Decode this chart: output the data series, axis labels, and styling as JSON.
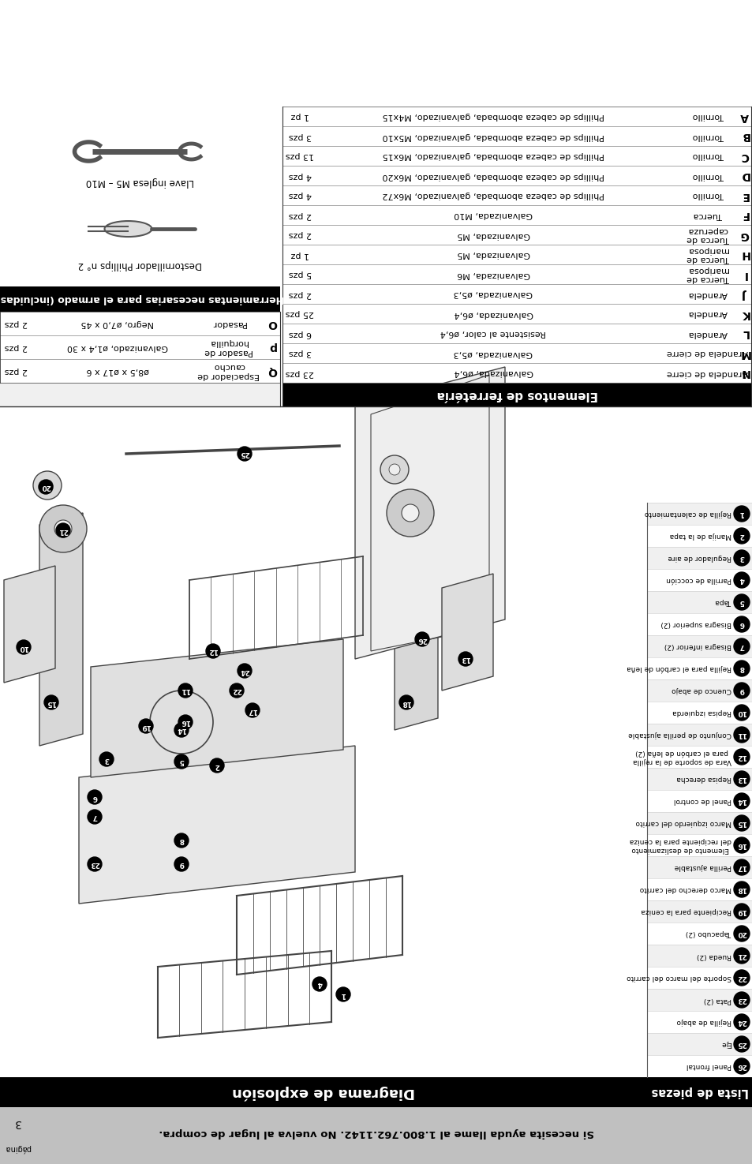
{
  "page_bg": "#ffffff",
  "footer_bg": "#c0c0c0",
  "black": "#000000",
  "white": "#ffffff",
  "light_gray": "#f5f5f5",
  "title_tools": "Herramientas necesarias para el armado (incluidas)",
  "tool1_label": "Llave inglesa M5 – M10",
  "tool2_label": "Destornillador Phillips n° 2",
  "hardware_title": "Elementos de ferretéría",
  "parts_title": "Lista de piezas",
  "diagram_title": "Diagrama de explosión",
  "footer_text": "Si necesita ayuda llame al 1.800.762.1142. No vuelva al lugar de compra.",
  "page_label": "página",
  "page_number": "3",
  "hw_rows_right": [
    [
      "N",
      "Arandela de cierre",
      "Galvanizada, ø6,4",
      "23 pzs"
    ],
    [
      "M",
      "Arandela de cierre",
      "Galvanizada, ø5,3",
      "3 pzs"
    ],
    [
      "L",
      "Arandela",
      "Resistente al calor, ø6,4",
      "6 pzs"
    ],
    [
      "K",
      "Arandela",
      "Galvanizada, ø6,4",
      "25 pzs"
    ],
    [
      "J",
      "Arandela",
      "Galvanizada, ø5,3",
      "2 pzs"
    ],
    [
      "I",
      "Tuerca de\nmariposa",
      "Galvanizada, M6",
      "5 pzs"
    ],
    [
      "H",
      "Tuerca de\nmariposa",
      "Galvanizada, M5",
      "1 pz"
    ],
    [
      "G",
      "Tuerca de\ncaperuza",
      "Galvanizada, M5",
      "2 pzs"
    ],
    [
      "F",
      "Tuerca",
      "Galvanizada, M10",
      "2 pzs"
    ],
    [
      "E",
      "Tornillo",
      "Phillips de cabeza abombada, galvanizado, M6x72",
      "4 pzs"
    ],
    [
      "D",
      "Tornillo",
      "Phillips de cabeza abombada, galvanizado, M6x20",
      "4 pzs"
    ],
    [
      "C",
      "Tornillo",
      "Phillips de cabeza abombada, galvanizado, M6x15",
      "13 pzs"
    ],
    [
      "B",
      "Tornillo",
      "Phillips de cabeza abombada, galvanizado, M5x10",
      "3 pzs"
    ],
    [
      "A",
      "Tornillo",
      "Phillips de cabeza abombada, galvanizado, M4x15",
      "1 pz"
    ]
  ],
  "hw_rows_left": [
    [
      "Q",
      "Espaciador de\ncaucho",
      "ø8,5 x ø17 x 6",
      "2 pzs"
    ],
    [
      "p",
      "Pasador de\nhorquilla",
      "Galvanizado, ø1,4 x 30",
      "2 pzs"
    ],
    [
      "O",
      "Pasador",
      "Negro, ø7,0 x 45",
      "2 pzs"
    ]
  ],
  "parts_list": [
    [
      "26",
      "Panel frontal"
    ],
    [
      "25",
      "Eje"
    ],
    [
      "24",
      "Rejilla de abajo"
    ],
    [
      "23",
      "Pata (2)"
    ],
    [
      "22",
      "Soporte del marco del carrito"
    ],
    [
      "21",
      "Rueda (2)"
    ],
    [
      "20",
      "Tapacubo (2)"
    ],
    [
      "19",
      "Recipiente para la ceniza"
    ],
    [
      "18",
      "Marco derecho del carrito"
    ],
    [
      "17",
      "Perilla ajustable"
    ],
    [
      "16",
      "Elemento de deslizamiento\ndel recipiente para la ceniza"
    ],
    [
      "15",
      "Marco izquierdo del carrito"
    ],
    [
      "14",
      "Panel de control"
    ],
    [
      "13",
      "Repisa derecha"
    ],
    [
      "12",
      "Vara de soporte de la rejilla\npara el carbón de leña (2)"
    ],
    [
      "11",
      "Conjunto de perilla ajustable"
    ],
    [
      "10",
      "Repisa izquierda"
    ],
    [
      "9",
      "Cuenco de abajo"
    ],
    [
      "8",
      "Rejilla para el carbón de leña"
    ],
    [
      "7",
      "Bisagra inferior (2)"
    ],
    [
      "6",
      "Bisagra superior (2)"
    ],
    [
      "5",
      "Tapa"
    ],
    [
      "4",
      "Parrilla de cocción"
    ],
    [
      "3",
      "Regulador de aire"
    ],
    [
      "2",
      "Manija de la tapa"
    ],
    [
      "1",
      "Rejilla de calentamiento"
    ]
  ]
}
